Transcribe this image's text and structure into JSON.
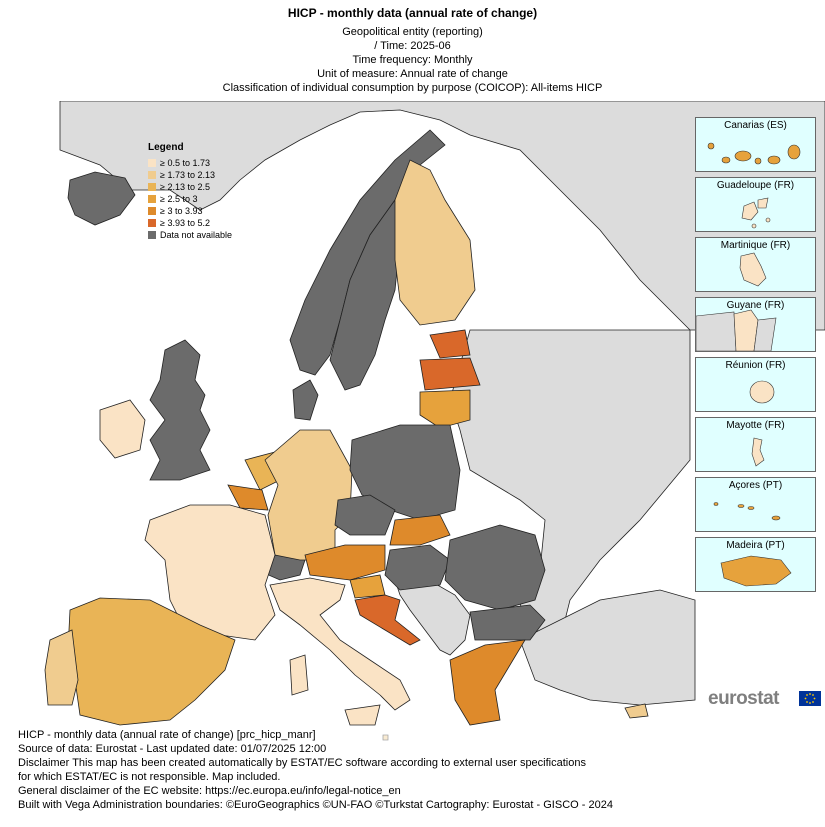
{
  "header": {
    "title": "HICP - monthly data (annual rate of change)",
    "lines": [
      "Geopolitical entity (reporting)",
      "/ Time:  2025-06",
      "Time frequency:  Monthly",
      "Unit of measure:  Annual rate of change",
      "Classification of individual consumption by purpose (COICOP):  All-items HICP"
    ]
  },
  "legend": {
    "title": "Legend",
    "items": [
      {
        "label": "≥ 0.5 to 1.73",
        "color": "#fae3c5"
      },
      {
        "label": "≥ 1.73 to 2.13",
        "color": "#f0cc8f"
      },
      {
        "label": "≥ 2.13 to 2.5",
        "color": "#e9b456"
      },
      {
        "label": "≥ 2.5 to 3",
        "color": "#e6a23c"
      },
      {
        "label": "≥ 3 to 3.93",
        "color": "#de8a2b"
      },
      {
        "label": "≥ 3.93 to 5.2",
        "color": "#d9682a"
      },
      {
        "label": "Data not available",
        "color": "#6b6b6b"
      }
    ]
  },
  "insets": [
    {
      "label": "Canarias (ES)"
    },
    {
      "label": "Guadeloupe (FR)"
    },
    {
      "label": "Martinique (FR)"
    },
    {
      "label": "Guyane (FR)"
    },
    {
      "label": "Réunion (FR)"
    },
    {
      "label": "Mayotte (FR)"
    },
    {
      "label": "Açores (PT)"
    },
    {
      "label": "Madeira (PT)"
    }
  ],
  "colors": {
    "sea": "#ffffff",
    "non_eu": "#dcdcdc",
    "border": "#222222",
    "inset_sea": "#e0ffff"
  },
  "logo": {
    "text": "eurostat"
  },
  "footer": {
    "lines": [
      "HICP - monthly data (annual rate of change) [prc_hicp_manr]",
      "Source of data: Eurostat - Last updated date: 01/07/2025 12:00",
      "Disclaimer This map has been created automatically by ESTAT/EC software according to external user specifications",
      "for which ESTAT/EC is not responsible. Map included.",
      "General disclaimer of the EC website: https://ec.europa.eu/info/legal-notice_en",
      "Built with Vega Administration boundaries: ©EuroGeographics ©UN-FAO ©Turkstat Cartography: Eurostat - GISCO - 2024"
    ]
  }
}
